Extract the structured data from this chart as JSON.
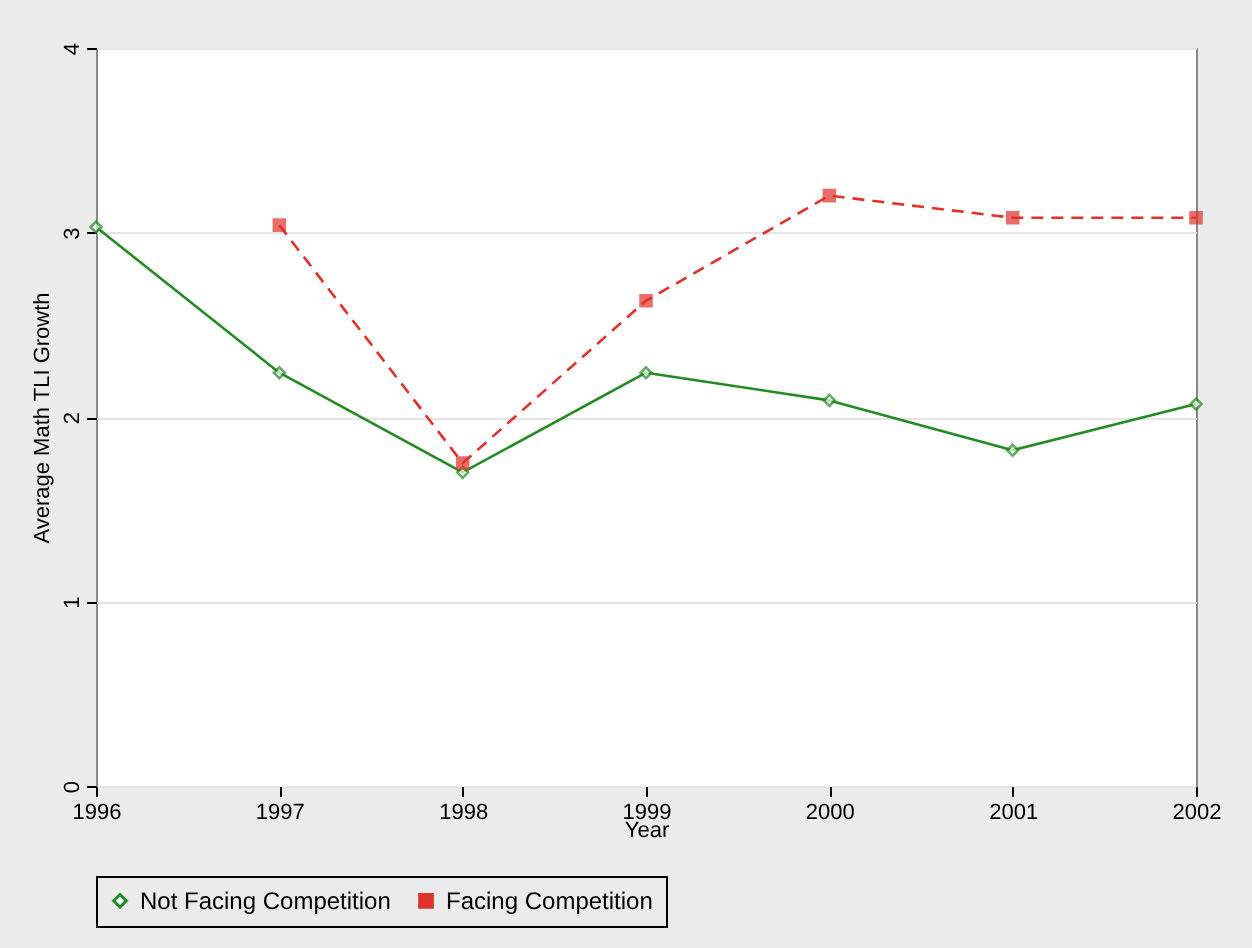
{
  "chart_data": {
    "type": "line",
    "xlabel": "Year",
    "ylabel": "Average Math TLI Growth",
    "x": [
      1996,
      1997,
      1998,
      1999,
      2000,
      2001,
      2002
    ],
    "series": [
      {
        "name": "Not Facing Competition",
        "color": "#228b22",
        "marker": "diamond",
        "line_style": "solid",
        "values": [
          3.03,
          2.24,
          1.7,
          2.24,
          2.09,
          1.82,
          2.07
        ]
      },
      {
        "name": "Facing Competition",
        "color": "#e0312b",
        "marker": "square",
        "line_style": "dashed",
        "values": [
          null,
          3.04,
          1.75,
          2.63,
          3.2,
          3.08,
          3.08
        ]
      }
    ],
    "xlim": [
      1996,
      2002
    ],
    "xticks": [
      1996,
      1997,
      1998,
      1999,
      2000,
      2001,
      2002
    ],
    "ylim": [
      0,
      4
    ],
    "yticks": [
      0,
      1,
      2,
      3,
      4
    ],
    "grid": "y",
    "legend": "bottom"
  }
}
